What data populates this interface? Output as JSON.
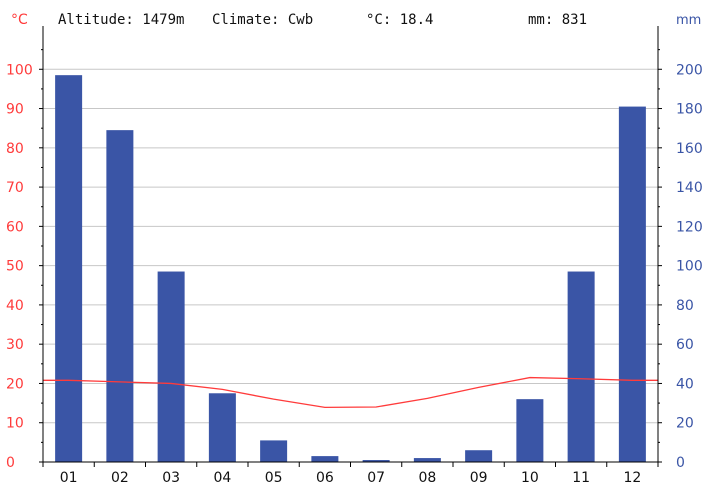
{
  "header": {
    "left_unit": "°C",
    "altitude": "Altitude: 1479m",
    "climate": "Climate: Cwb",
    "temp_avg": "°C: 18.4",
    "precip_total": "mm: 831",
    "right_unit": "mm"
  },
  "chart_data": {
    "type": "bar",
    "categories": [
      "01",
      "02",
      "03",
      "04",
      "05",
      "06",
      "07",
      "08",
      "09",
      "10",
      "11",
      "12"
    ],
    "series": [
      {
        "axis": "right",
        "kind": "bar",
        "color": "#3a55a6",
        "values": [
          197,
          169,
          97,
          35,
          11,
          3,
          1,
          2,
          6,
          32,
          97,
          181
        ]
      },
      {
        "axis": "left",
        "kind": "line",
        "color": "#ff3b3b",
        "values": [
          20.8,
          20.4,
          20.0,
          18.5,
          16.0,
          13.9,
          14.0,
          16.2,
          19.0,
          21.5,
          21.2,
          20.8
        ]
      }
    ],
    "y_left": {
      "unit": "°C",
      "range": [
        0,
        110
      ],
      "ticks": [
        0,
        10,
        20,
        30,
        40,
        50,
        60,
        70,
        80,
        90,
        100
      ],
      "color": "#ff3b3b"
    },
    "y_right": {
      "unit": "mm",
      "range": [
        0,
        220
      ],
      "ticks": [
        0,
        20,
        40,
        60,
        80,
        100,
        120,
        140,
        160,
        180,
        200
      ],
      "color": "#3a55a6"
    },
    "grid": true
  }
}
